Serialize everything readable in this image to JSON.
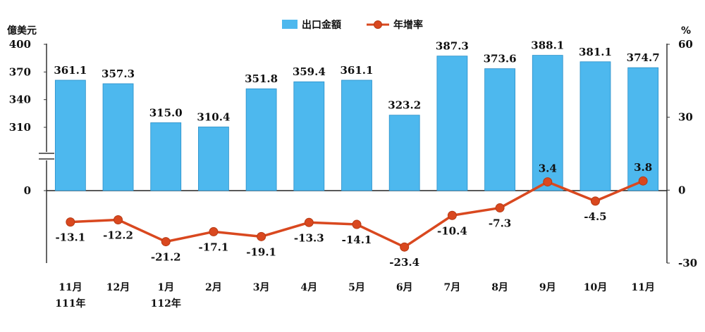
{
  "chart_data": {
    "type": "bar+line",
    "categories": [
      "11月",
      "12月",
      "1月",
      "2月",
      "3月",
      "4月",
      "5月",
      "6月",
      "7月",
      "8月",
      "9月",
      "10月",
      "11月"
    ],
    "category_sublabels": [
      "111年",
      "",
      "112年",
      "",
      "",
      "",
      "",
      "",
      "",
      "",
      "",
      "",
      ""
    ],
    "series": [
      {
        "name": "出口金額",
        "type": "bar",
        "axis": "left",
        "color": "#4db8ee",
        "values": [
          361.1,
          357.3,
          315.0,
          310.4,
          351.8,
          359.4,
          361.1,
          323.2,
          387.3,
          373.6,
          388.1,
          381.1,
          374.7
        ],
        "labels": [
          "361.1",
          "357.3",
          "315.0",
          "310.4",
          "351.8",
          "359.4",
          "361.1",
          "323.2",
          "387.3",
          "373.6",
          "388.1",
          "381.1",
          "374.7"
        ]
      },
      {
        "name": "年增率",
        "type": "line",
        "axis": "right",
        "color": "#d9481f",
        "values": [
          -13.1,
          -12.2,
          -21.2,
          -17.1,
          -19.1,
          -13.3,
          -14.1,
          -23.4,
          -10.4,
          -7.3,
          3.4,
          -4.5,
          3.8
        ],
        "labels": [
          "-13.1",
          "-12.2",
          "-21.2",
          "-17.1",
          "-19.1",
          "-13.3",
          "-14.1",
          "-23.4",
          "-10.4",
          "-7.3",
          "3.4",
          "-4.5",
          "3.8"
        ]
      }
    ],
    "left_axis": {
      "unit": "億美元",
      "ticks": [
        "400",
        "370",
        "340",
        "310",
        "0"
      ],
      "tick_values": [
        400,
        370,
        340,
        310,
        0
      ],
      "broken": true
    },
    "right_axis": {
      "unit": "%",
      "ticks": [
        "60",
        "30",
        "0",
        "-30"
      ],
      "tick_values": [
        60,
        30,
        0,
        -30
      ],
      "range": [
        -30,
        60
      ]
    },
    "legend_position": "top-center",
    "grid": false
  }
}
